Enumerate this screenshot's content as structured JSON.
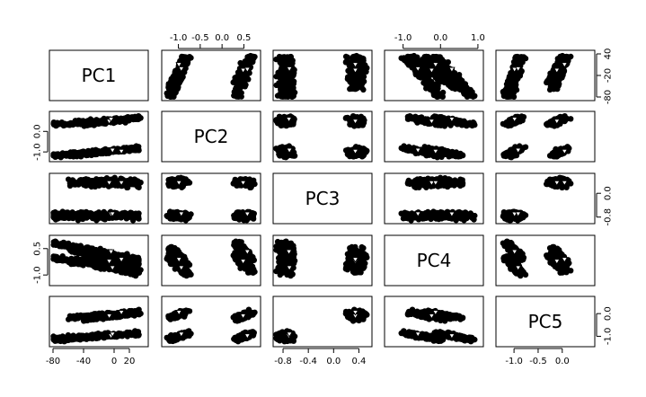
{
  "chart_data": {
    "type": "scatter",
    "title": "",
    "variables": [
      {
        "name": "PC1",
        "lim": [
          -80,
          40
        ]
      },
      {
        "name": "PC2",
        "lim": [
          -1.3,
          0.8
        ]
      },
      {
        "name": "PC3",
        "lim": [
          -0.9,
          0.55
        ]
      },
      {
        "name": "PC4",
        "lim": [
          -1.4,
          1.05
        ]
      },
      {
        "name": "PC5",
        "lim": [
          -1.3,
          0.6
        ]
      }
    ],
    "axis_ticks": {
      "top": [
        {
          "var": 1,
          "ticks": [
            -1.0,
            -0.5,
            0.0,
            0.5
          ],
          "labels": [
            "-1.0",
            "-0.5",
            "0.0",
            "0.5"
          ]
        },
        {
          "var": 3,
          "ticks": [
            -1.0,
            0.0,
            1.0
          ],
          "labels": [
            "-1.0",
            "0.0",
            "1.0"
          ]
        }
      ],
      "bottom": [
        {
          "var": 0,
          "ticks": [
            -80,
            -40,
            0,
            20
          ],
          "labels": [
            "-80",
            "-40",
            "0",
            "20"
          ]
        },
        {
          "var": 2,
          "ticks": [
            -0.8,
            -0.4,
            0.0,
            0.4
          ],
          "labels": [
            "-0.8",
            "-0.4",
            "0.0",
            "0.4"
          ]
        },
        {
          "var": 4,
          "ticks": [
            -1.0,
            -0.5,
            0.0
          ],
          "labels": [
            "-1.0",
            "-0.5",
            "0.0"
          ]
        }
      ],
      "left": [
        {
          "var": 1,
          "ticks": [
            -1.0,
            0.0
          ],
          "labels": [
            "-1.0",
            "0.0"
          ]
        },
        {
          "var": 3,
          "ticks": [
            -1.0,
            0.5
          ],
          "labels": [
            "-1.0",
            "0.5"
          ]
        }
      ],
      "right": [
        {
          "var": 0,
          "ticks": [
            -80,
            -20,
            40
          ],
          "labels": [
            "-80",
            "-20",
            "40"
          ]
        },
        {
          "var": 2,
          "ticks": [
            -0.8,
            0.0
          ],
          "labels": [
            "-0.8",
            "0.0"
          ]
        },
        {
          "var": 4,
          "ticks": [
            -1.0,
            0.0
          ],
          "labels": [
            "-1.0",
            "0.0"
          ]
        }
      ]
    },
    "grid": false,
    "legend": "none",
    "marker": "open-triangle-down",
    "clusters": [
      {
        "pc2": 0.5,
        "pc3": 0.35,
        "pc4": -0.35,
        "pc5": -0.1,
        "pc1_range": [
          -40,
          35
        ]
      },
      {
        "pc2": 0.5,
        "pc3": -0.75,
        "pc4": 0.35,
        "pc5": -1.0,
        "pc1_range": [
          -80,
          35
        ]
      },
      {
        "pc2": -1.0,
        "pc3": 0.35,
        "pc4": 0.05,
        "pc5": -0.05,
        "pc1_range": [
          -60,
          35
        ]
      },
      {
        "pc2": -1.0,
        "pc3": -0.75,
        "pc4": -0.45,
        "pc5": -1.0,
        "pc1_range": [
          -80,
          30
        ]
      }
    ]
  }
}
